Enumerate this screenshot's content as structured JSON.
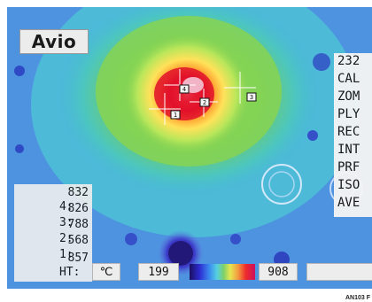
{
  "logo": "Avio",
  "menu": {
    "items": [
      "232",
      "CAL",
      "ZOM",
      "PLY",
      "REC",
      "INT",
      "PRF",
      "ISO",
      "AVE"
    ]
  },
  "readout": {
    "rows": [
      {
        "label": "4:",
        "value": "832"
      },
      {
        "label": "3:",
        "value": "826"
      },
      {
        "label": "2:",
        "value": "788"
      },
      {
        "label": "1:",
        "value": "568"
      },
      {
        "label": "HT:",
        "value": "857"
      }
    ]
  },
  "status": {
    "unit_icon": "celsius-icon",
    "unit_label": "℃",
    "scale_min": "199",
    "scale_max": "908"
  },
  "cursors": [
    "4",
    "3",
    "2",
    "1"
  ],
  "caption": "AN103 F"
}
